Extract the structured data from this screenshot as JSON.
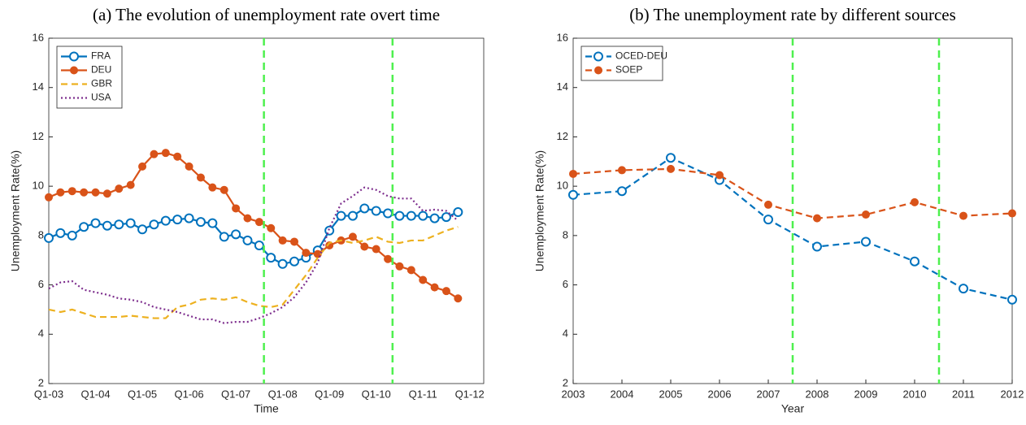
{
  "chart_data": [
    {
      "type": "line",
      "title": "(a) The evolution of unemployment rate overt time",
      "x_label": "Time",
      "y_label": "Unemployment Rate(%)",
      "categories": [
        "Q1-03",
        null,
        null,
        null,
        "Q1-04",
        null,
        null,
        null,
        "Q1-05",
        null,
        null,
        null,
        "Q1-06",
        null,
        null,
        null,
        "Q1-07",
        null,
        null,
        null,
        "Q1-08",
        null,
        null,
        null,
        "Q1-09",
        null,
        null,
        null,
        "Q1-10",
        null,
        null,
        null,
        "Q1-11",
        null,
        null,
        null,
        "Q1-12"
      ],
      "series": [
        {
          "name": "FRA",
          "color": "#0072bd",
          "linestyle": "solid",
          "marker": "open-circle",
          "values": [
            7.9,
            8.1,
            8.0,
            8.35,
            8.5,
            8.4,
            8.45,
            8.5,
            8.25,
            8.45,
            8.6,
            8.65,
            8.7,
            8.55,
            8.5,
            7.95,
            8.05,
            7.8,
            7.6,
            7.1,
            6.85,
            6.95,
            7.1,
            7.4,
            8.2,
            8.8,
            8.8,
            9.1,
            9.0,
            8.9,
            8.8,
            8.8,
            8.8,
            8.7,
            8.75,
            8.95,
            null
          ]
        },
        {
          "name": "DEU",
          "color": "#d95319",
          "linestyle": "solid",
          "marker": "filled-circle",
          "values": [
            9.55,
            9.75,
            9.8,
            9.75,
            9.75,
            9.7,
            9.9,
            10.05,
            10.8,
            11.3,
            11.35,
            11.2,
            10.8,
            10.35,
            9.95,
            9.85,
            9.1,
            8.7,
            8.55,
            8.3,
            7.8,
            7.75,
            7.3,
            7.25,
            7.6,
            7.8,
            7.95,
            7.55,
            7.45,
            7.05,
            6.75,
            6.6,
            6.2,
            5.9,
            5.75,
            5.45,
            null
          ]
        },
        {
          "name": "GBR",
          "color": "#edb120",
          "linestyle": "dashed",
          "marker": "none",
          "values": [
            5.0,
            4.9,
            5.0,
            4.85,
            4.7,
            4.7,
            4.7,
            4.75,
            4.7,
            4.65,
            4.65,
            5.1,
            5.2,
            5.4,
            5.45,
            5.4,
            5.5,
            5.3,
            5.15,
            5.1,
            5.2,
            5.8,
            6.4,
            7.1,
            7.7,
            7.8,
            7.7,
            7.8,
            7.95,
            7.75,
            7.7,
            7.8,
            7.8,
            8.0,
            8.2,
            8.35,
            null
          ]
        },
        {
          "name": "USA",
          "color": "#7e2f8e",
          "linestyle": "dotted",
          "marker": "none",
          "values": [
            5.85,
            6.1,
            6.15,
            5.8,
            5.7,
            5.6,
            5.45,
            5.4,
            5.3,
            5.1,
            5.0,
            4.9,
            4.75,
            4.6,
            4.6,
            4.45,
            4.5,
            4.5,
            4.65,
            4.85,
            5.1,
            5.5,
            6.1,
            6.9,
            8.3,
            9.3,
            9.6,
            9.95,
            9.85,
            9.6,
            9.5,
            9.5,
            9.0,
            9.05,
            9.0,
            8.6,
            null
          ]
        }
      ],
      "ylim": [
        2,
        16
      ],
      "yticks": [
        2,
        4,
        6,
        8,
        10,
        12,
        14,
        16
      ],
      "vlines": [
        18.4,
        29.4
      ],
      "vline_color": "#4ef04e",
      "legend": "upper left",
      "grid": false
    },
    {
      "type": "line",
      "title": "(b) The unemployment rate by different sources",
      "x_label": "Year",
      "y_label": "Unemployment Rate(%)",
      "x": [
        2003,
        2004,
        2005,
        2006,
        2007,
        2008,
        2009,
        2010,
        2011,
        2012
      ],
      "series": [
        {
          "name": "OCED-DEU",
          "color": "#0072bd",
          "linestyle": "dashed",
          "marker": "open-circle",
          "values": [
            9.65,
            9.8,
            11.15,
            10.25,
            8.65,
            7.55,
            7.75,
            6.95,
            5.85,
            5.4
          ]
        },
        {
          "name": "SOEP",
          "color": "#d95319",
          "linestyle": "dashed",
          "marker": "filled-circle",
          "values": [
            10.5,
            10.65,
            10.7,
            10.45,
            9.25,
            8.7,
            8.85,
            9.35,
            8.8,
            8.9
          ]
        }
      ],
      "xlim": [
        2003,
        2012
      ],
      "xticks": [
        2003,
        2004,
        2005,
        2006,
        2007,
        2008,
        2009,
        2010,
        2011,
        2012
      ],
      "ylim": [
        2,
        16
      ],
      "yticks": [
        2,
        4,
        6,
        8,
        10,
        12,
        14,
        16
      ],
      "vlines": [
        2007.5,
        2010.5
      ],
      "vline_color": "#4ef04e",
      "legend": "upper left",
      "grid": false
    }
  ]
}
